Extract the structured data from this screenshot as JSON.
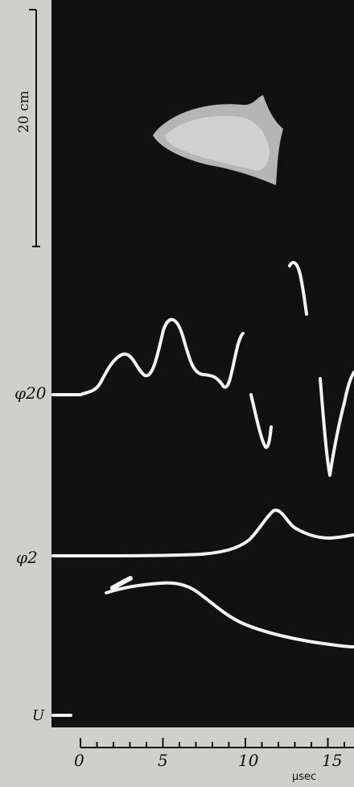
{
  "scale_bar": {
    "label": "20  cm"
  },
  "traces": [
    {
      "id": "phi20",
      "label": "φ20"
    },
    {
      "id": "phi2",
      "label": "φ2"
    },
    {
      "id": "u",
      "label": "U"
    }
  ],
  "time_axis": {
    "tick_labels": [
      "0",
      "5",
      "10",
      "15"
    ],
    "unit": "μsec"
  },
  "colors": {
    "background_photo": "#111111",
    "trace": "#f2f2f2",
    "border": "#cfcfcc"
  }
}
